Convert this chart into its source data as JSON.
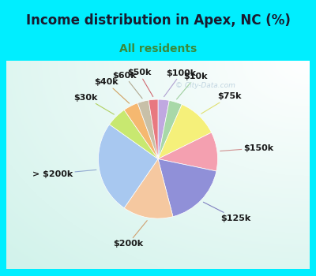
{
  "title": "Income distribution in Apex, NC (%)",
  "subtitle": "All residents",
  "watermark": "© City-Data.com",
  "labels": [
    "$100k",
    "$10k",
    "$75k",
    "$150k",
    "$125k",
    "$200k",
    "> $200k",
    "$30k",
    "$40k",
    "$60k",
    "$50k"
  ],
  "values": [
    3.0,
    3.5,
    11.0,
    10.5,
    17.5,
    13.5,
    25.0,
    5.5,
    4.0,
    3.0,
    2.5
  ],
  "colors": [
    "#c0a8e0",
    "#a8d8a8",
    "#f5f07a",
    "#f4a0b0",
    "#9090d8",
    "#f5c8a0",
    "#a8c8f0",
    "#c8e870",
    "#f5b870",
    "#c8c0a8",
    "#e87880"
  ],
  "startangle": 90,
  "counterclock": false,
  "bg_cyan": "#00eeff",
  "bg_chart": "#e8f5ee",
  "title_color": "#1a1a2e",
  "subtitle_color": "#3a8a3a",
  "label_color": "#1a1a1a",
  "label_fontsize": 8,
  "title_fontsize": 12,
  "subtitle_fontsize": 10,
  "cyan_border": 8,
  "label_line_colors": [
    "#b0a0d0",
    "#a0d0a0",
    "#e0e070",
    "#d09090",
    "#8080c0",
    "#d0a070",
    "#90a8d0",
    "#b0d060",
    "#d0a060",
    "#b0a890",
    "#d06870"
  ]
}
